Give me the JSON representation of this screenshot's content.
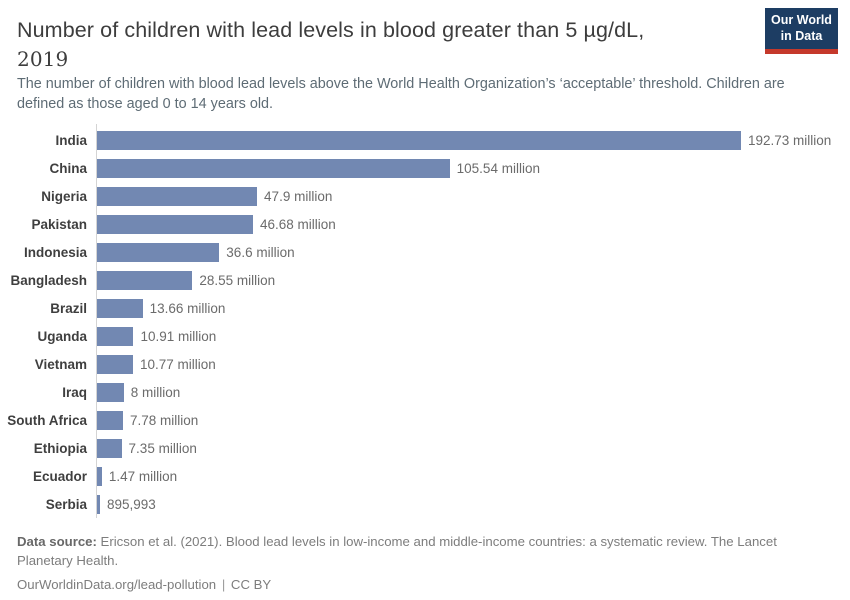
{
  "header": {
    "title_line1": "Number of children with lead levels in blood greater than 5 µg/dL,",
    "title_line2": "2019",
    "subtitle": "The number of children with blood lead levels above the World Health Organization’s ‘acceptable’ threshold. Children are defined as those aged 0 to 14 years old.",
    "logo": {
      "line1": "Our World",
      "line2": "in Data"
    }
  },
  "chart_data": {
    "type": "bar",
    "orientation": "horizontal",
    "title": "Number of children with lead levels in blood greater than 5 µg/dL, 2019",
    "xlabel": "",
    "ylabel": "",
    "xlim_millions": [
      0,
      192.73
    ],
    "grid": false,
    "legend": "none",
    "bar_color": "#7288b2",
    "axis_line_color": "#d4d4d4",
    "categories": [
      "India",
      "China",
      "Nigeria",
      "Pakistan",
      "Indonesia",
      "Bangladesh",
      "Brazil",
      "Uganda",
      "Vietnam",
      "Iraq",
      "South Africa",
      "Ethiopia",
      "Ecuador",
      "Serbia"
    ],
    "values_millions": [
      192.73,
      105.54,
      47.9,
      46.68,
      36.6,
      28.55,
      13.66,
      10.91,
      10.77,
      8,
      7.78,
      7.35,
      1.47,
      0.895993
    ],
    "value_labels": [
      "192.73 million",
      "105.54 million",
      "47.9 million",
      "46.68 million",
      "36.6 million",
      "28.55 million",
      "13.66 million",
      "10.91 million",
      "10.77 million",
      "8 million",
      "7.78 million",
      "7.35 million",
      "1.47 million",
      "895,993"
    ]
  },
  "footer": {
    "source_label": "Data source:",
    "source_text": " Ericson et al. (2021). Blood lead levels in low-income and middle-income countries: a systematic review. The Lancet Planetary Health.",
    "link": "OurWorldinData.org/lead-pollution",
    "separator": "|",
    "license": "CC BY"
  }
}
